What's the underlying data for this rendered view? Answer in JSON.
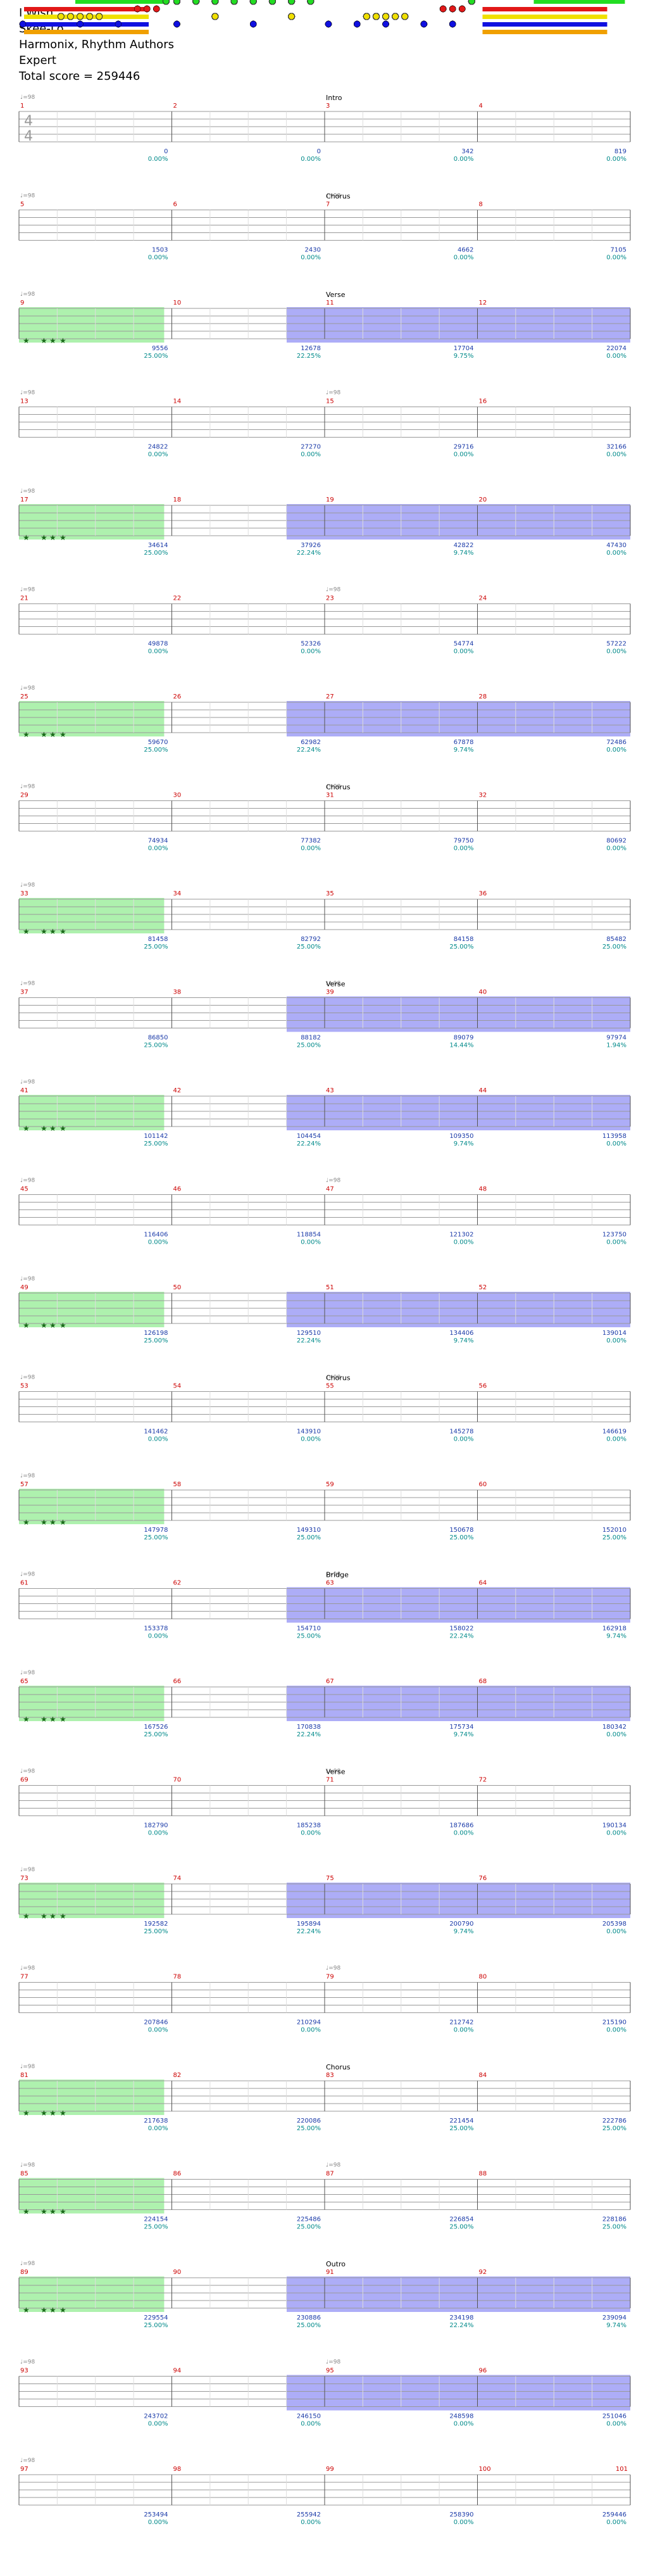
{
  "song": {
    "title": "I Wish",
    "artist": "Skee-Lo",
    "charter": "Harmonix, Rhythm Authors",
    "difficulty": "Expert",
    "total_score": "Total score = 259446"
  },
  "time_signature": {
    "numerator": "4",
    "denominator": "4"
  },
  "tempo_mark": "♩=98",
  "colors": {
    "green": "#22dd22",
    "red": "#e21818",
    "yellow": "#f0e000",
    "blue": "#1010e0",
    "orange": "#f0a000",
    "starpower_region": "#78e878",
    "solo_region": "#6a6af0",
    "overlap_region": "#4a8fb0",
    "measure_number": "#cc0000",
    "score_text": "#1a3aa8",
    "percent_text": "#008a8a",
    "staff_line": "#999999"
  },
  "rows": [
    {
      "measures": [
        1,
        2,
        3,
        4
      ],
      "section": {
        "text": "Intro",
        "at": 2
      },
      "scores": [
        "0",
        "0",
        "342",
        "819"
      ],
      "percents": [
        "0.00%",
        "0.00%",
        "0.00%",
        "0.00%"
      ]
    },
    {
      "measures": [
        5,
        6,
        7,
        8
      ],
      "section": {
        "text": "Chorus",
        "at": 2
      },
      "scores": [
        "1503",
        "2430",
        "4662",
        "7105"
      ],
      "percents": [
        "0.00%",
        "0.00%",
        "0.00%",
        "0.00%"
      ]
    },
    {
      "measures": [
        9,
        10,
        11,
        12
      ],
      "section": {
        "text": "Verse",
        "at": 2
      },
      "scores": [
        "9556",
        "12678",
        "17704",
        "22074"
      ],
      "percents": [
        "25.00%",
        "22.25%",
        "9.75%",
        "0.00%"
      ]
    },
    {
      "measures": [
        13,
        14,
        15,
        16
      ],
      "section": null,
      "scores": [
        "24822",
        "27270",
        "29716",
        "32166"
      ],
      "percents": [
        "0.00%",
        "0.00%",
        "0.00%",
        "0.00%"
      ]
    },
    {
      "measures": [
        17,
        18,
        19,
        20
      ],
      "section": null,
      "scores": [
        "34614",
        "37926",
        "42822",
        "47430"
      ],
      "percents": [
        "25.00%",
        "22.24%",
        "9.74%",
        "0.00%"
      ]
    },
    {
      "measures": [
        21,
        22,
        23,
        24
      ],
      "section": null,
      "scores": [
        "49878",
        "52326",
        "54774",
        "57222"
      ],
      "percents": [
        "0.00%",
        "0.00%",
        "0.00%",
        "0.00%"
      ]
    },
    {
      "measures": [
        25,
        26,
        27,
        28
      ],
      "section": null,
      "scores": [
        "59670",
        "62982",
        "67878",
        "72486"
      ],
      "percents": [
        "25.00%",
        "22.24%",
        "9.74%",
        "0.00%"
      ]
    },
    {
      "measures": [
        29,
        30,
        31,
        32
      ],
      "section": {
        "text": "Chorus",
        "at": 2
      },
      "scores": [
        "74934",
        "77382",
        "79750",
        "80692"
      ],
      "percents": [
        "0.00%",
        "0.00%",
        "0.00%",
        "0.00%"
      ]
    },
    {
      "measures": [
        33,
        34,
        35,
        36
      ],
      "section": null,
      "scores": [
        "81458",
        "82792",
        "84158",
        "85482"
      ],
      "percents": [
        "25.00%",
        "25.00%",
        "25.00%",
        "25.00%"
      ]
    },
    {
      "measures": [
        37,
        38,
        39,
        40
      ],
      "section": {
        "text": "Verse",
        "at": 2
      },
      "scores": [
        "86850",
        "88182",
        "89079",
        "97974"
      ],
      "percents": [
        "25.00%",
        "25.00%",
        "14.44%",
        "1.94%"
      ]
    },
    {
      "measures": [
        41,
        42,
        43,
        44
      ],
      "section": null,
      "scores": [
        "101142",
        "104454",
        "109350",
        "113958"
      ],
      "percents": [
        "25.00%",
        "22.24%",
        "9.74%",
        "0.00%"
      ]
    },
    {
      "measures": [
        45,
        46,
        47,
        48
      ],
      "section": null,
      "scores": [
        "116406",
        "118854",
        "121302",
        "123750"
      ],
      "percents": [
        "0.00%",
        "0.00%",
        "0.00%",
        "0.00%"
      ]
    },
    {
      "measures": [
        49,
        50,
        51,
        52
      ],
      "section": null,
      "scores": [
        "126198",
        "129510",
        "134406",
        "139014"
      ],
      "percents": [
        "25.00%",
        "22.24%",
        "9.74%",
        "0.00%"
      ]
    },
    {
      "measures": [
        53,
        54,
        55,
        56
      ],
      "section": {
        "text": "Chorus",
        "at": 2
      },
      "scores": [
        "141462",
        "143910",
        "145278",
        "146619"
      ],
      "percents": [
        "0.00%",
        "0.00%",
        "0.00%",
        "0.00%"
      ]
    },
    {
      "measures": [
        57,
        58,
        59,
        60
      ],
      "section": null,
      "scores": [
        "147978",
        "149310",
        "150678",
        "152010"
      ],
      "percents": [
        "25.00%",
        "25.00%",
        "25.00%",
        "25.00%"
      ]
    },
    {
      "measures": [
        61,
        62,
        63,
        64
      ],
      "section": {
        "text": "Bridge",
        "at": 2
      },
      "scores": [
        "153378",
        "154710",
        "158022",
        "162918"
      ],
      "percents": [
        "0.00%",
        "25.00%",
        "22.24%",
        "9.74%"
      ]
    },
    {
      "measures": [
        65,
        66,
        67,
        68
      ],
      "section": null,
      "scores": [
        "167526",
        "170838",
        "175734",
        "180342"
      ],
      "percents": [
        "25.00%",
        "22.24%",
        "9.74%",
        "0.00%"
      ]
    },
    {
      "measures": [
        69,
        70,
        71,
        72
      ],
      "section": {
        "text": "Verse",
        "at": 2
      },
      "scores": [
        "182790",
        "185238",
        "187686",
        "190134"
      ],
      "percents": [
        "0.00%",
        "0.00%",
        "0.00%",
        "0.00%"
      ]
    },
    {
      "measures": [
        73,
        74,
        75,
        76
      ],
      "section": null,
      "scores": [
        "192582",
        "195894",
        "200790",
        "205398"
      ],
      "percents": [
        "25.00%",
        "22.24%",
        "9.74%",
        "0.00%"
      ]
    },
    {
      "measures": [
        77,
        78,
        79,
        80
      ],
      "section": null,
      "scores": [
        "207846",
        "210294",
        "212742",
        "215190"
      ],
      "percents": [
        "0.00%",
        "0.00%",
        "0.00%",
        "0.00%"
      ]
    },
    {
      "measures": [
        81,
        82,
        83,
        84
      ],
      "section": {
        "text": "Chorus",
        "at": 2
      },
      "scores": [
        "217638",
        "220086",
        "221454",
        "222786"
      ],
      "percents": [
        "0.00%",
        "25.00%",
        "25.00%",
        "25.00%"
      ]
    },
    {
      "measures": [
        85,
        86,
        87,
        88
      ],
      "section": null,
      "scores": [
        "224154",
        "225486",
        "226854",
        "228186"
      ],
      "percents": [
        "25.00%",
        "25.00%",
        "25.00%",
        "25.00%"
      ]
    },
    {
      "measures": [
        89,
        90,
        91,
        92
      ],
      "section": {
        "text": "Outro",
        "at": 2
      },
      "scores": [
        "229554",
        "230886",
        "234198",
        "239094"
      ],
      "percents": [
        "25.00%",
        "25.00%",
        "22.24%",
        "9.74%"
      ]
    },
    {
      "measures": [
        93,
        94,
        95,
        96
      ],
      "section": null,
      "scores": [
        "243702",
        "246150",
        "248598",
        "251046"
      ],
      "percents": [
        "0.00%",
        "0.00%",
        "0.00%",
        "0.00%"
      ]
    },
    {
      "measures": [
        97,
        98,
        99,
        100
      ],
      "section": null,
      "scores": [
        "253494",
        "255942",
        "258390",
        "259446"
      ],
      "percents": [
        "0.00%",
        "0.00%",
        "0.00%",
        "0.00%"
      ]
    }
  ],
  "end_measure_label": "101"
}
